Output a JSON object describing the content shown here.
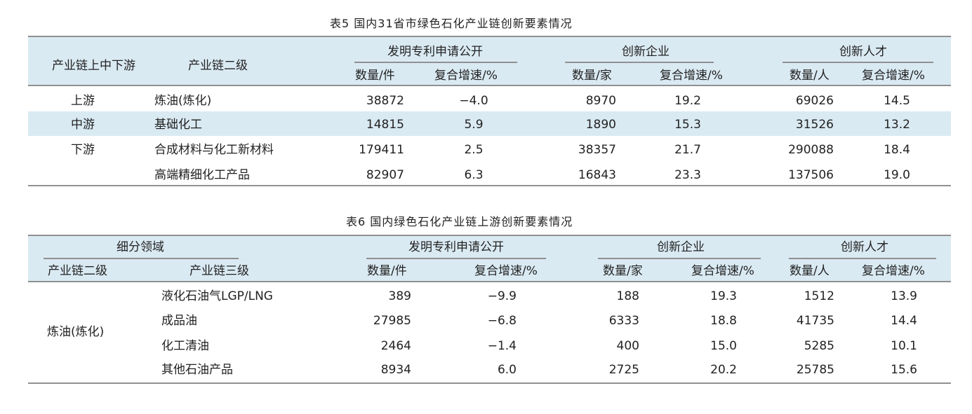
{
  "table5": {
    "caption": "表5  国内31省市绿色石化产业链创新要素情况",
    "head": {
      "level": "产业链上中下游",
      "level2": "产业链二级",
      "patent_group": "发明专利申请公开",
      "enterprise_group": "创新企业",
      "talent_group": "创新人才",
      "patent_qty": "数量/件",
      "enterprise_qty": "数量/家",
      "talent_qty": "数量/人",
      "cagr": "复合增速/%"
    },
    "rows": [
      {
        "stage": "上游",
        "name": "炼油(炼化)",
        "patent": "38872",
        "patent_cagr": "−4.0",
        "ent": "8970",
        "ent_cagr": "19.2",
        "talent": "69026",
        "talent_cagr": "14.5"
      },
      {
        "stage": "中游",
        "name": "基础化工",
        "patent": "14815",
        "patent_cagr": "5.9",
        "ent": "1890",
        "ent_cagr": "15.3",
        "talent": "31526",
        "talent_cagr": "13.2"
      },
      {
        "stage": "下游",
        "name": "合成材料与化工新材料",
        "patent": "179411",
        "patent_cagr": "2.5",
        "ent": "38357",
        "ent_cagr": "21.7",
        "talent": "290088",
        "talent_cagr": "18.4"
      },
      {
        "stage": "",
        "name": "高端精细化工产品",
        "patent": "82907",
        "patent_cagr": "6.3",
        "ent": "16843",
        "ent_cagr": "23.3",
        "talent": "137506",
        "talent_cagr": "19.0"
      }
    ]
  },
  "table6": {
    "caption": "表6  国内绿色石化产业链上游创新要素情况",
    "head": {
      "segment": "细分领域",
      "level2": "产业链二级",
      "level3": "产业链三级",
      "patent_group": "发明专利申请公开",
      "enterprise_group": "创新企业",
      "talent_group": "创新人才",
      "patent_qty": "数量/件",
      "enterprise_qty": "数量/家",
      "talent_qty": "数量/人",
      "cagr": "复合增速/%"
    },
    "group_label": "炼油(炼化)",
    "rows": [
      {
        "name": "液化石油气LGP/LNG",
        "patent": "389",
        "patent_cagr": "−9.9",
        "ent": "188",
        "ent_cagr": "19.3",
        "talent": "1512",
        "talent_cagr": "13.9"
      },
      {
        "name": "成品油",
        "patent": "27985",
        "patent_cagr": "−6.8",
        "ent": "6333",
        "ent_cagr": "18.8",
        "talent": "41735",
        "talent_cagr": "14.4"
      },
      {
        "name": "化工清油",
        "patent": "2464",
        "patent_cagr": "−1.4",
        "ent": "400",
        "ent_cagr": "15.0",
        "talent": "5285",
        "talent_cagr": "10.1"
      },
      {
        "name": "其他石油产品",
        "patent": "8934",
        "patent_cagr": "6.0",
        "ent": "2725",
        "ent_cagr": "20.2",
        "talent": "25785",
        "talent_cagr": "15.6"
      }
    ]
  }
}
